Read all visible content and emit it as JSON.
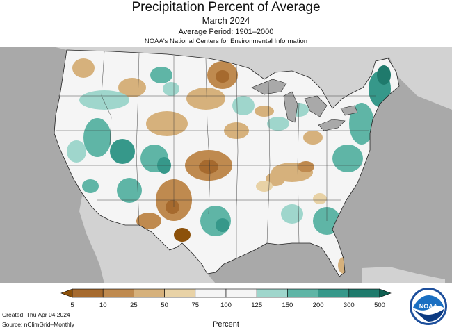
{
  "header": {
    "title": "Precipitation Percent of Average",
    "subtitle": "March 2024",
    "period": "Average Period: 1901–2000",
    "source": "NOAA's National Centers for Environmental Information"
  },
  "legend": {
    "ticks": [
      "5",
      "10",
      "25",
      "50",
      "75",
      "100",
      "125",
      "150",
      "200",
      "300",
      "500"
    ],
    "colors": [
      "#8c510a",
      "#a66a2e",
      "#bf8a4f",
      "#d6b17c",
      "#e8d2a6",
      "#f5f5f5",
      "#f5f5f5",
      "#9fd6cc",
      "#5fb5a6",
      "#36988a",
      "#1f7a6c",
      "#0f5f52"
    ],
    "units": "Percent"
  },
  "footer": {
    "created": "Created: Thu Apr 04 2024",
    "source": "Source: nClimGrid–Monthly"
  },
  "logo": {
    "text": "NOAA",
    "icon": "noaa-logo"
  },
  "map": {
    "type": "choropleth",
    "region": "Contiguous United States",
    "ocean_color": "#a9a9a9",
    "neighbor_land_color": "#d2d2d2",
    "lakes_color": "#a9a9a9"
  }
}
